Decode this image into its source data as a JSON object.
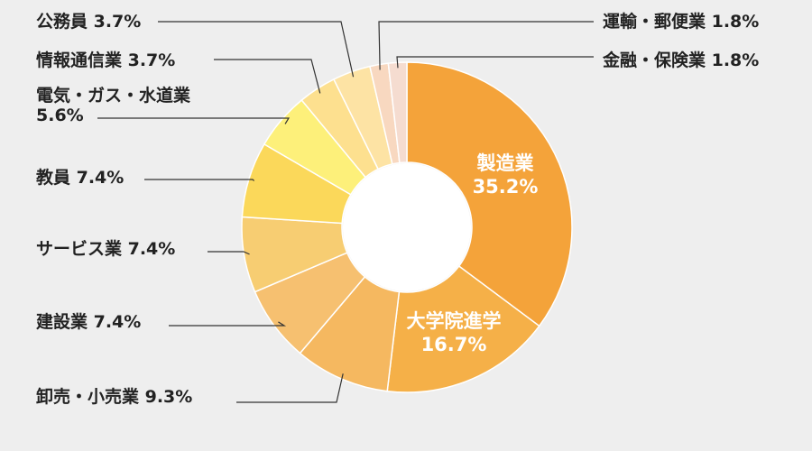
{
  "chart_data": {
    "type": "pie",
    "donut": true,
    "categories": [
      "製造業",
      "大学院進学",
      "卸売・小売業",
      "建設業",
      "サービス業",
      "教員",
      "電気・ガス・水道業",
      "情報通信業",
      "公務員",
      "運輸・郵便業",
      "金融・保険業"
    ],
    "values": [
      35.2,
      16.7,
      9.3,
      7.4,
      7.4,
      7.4,
      5.6,
      3.7,
      3.7,
      1.8,
      1.8
    ],
    "value_labels": [
      "35.2%",
      "16.7%",
      "9.3%",
      "7.4%",
      "7.4%",
      "7.4%",
      "5.6%",
      "3.7%",
      "3.7%",
      "1.8%",
      "1.8%"
    ],
    "colors": [
      "#f4a33a",
      "#f5b048",
      "#f5b860",
      "#f6c070",
      "#f7cd72",
      "#fbd85a",
      "#fdf07a",
      "#fde08f",
      "#fde3a4",
      "#f8d8c0",
      "#f5dcd0"
    ],
    "legend": "none"
  }
}
